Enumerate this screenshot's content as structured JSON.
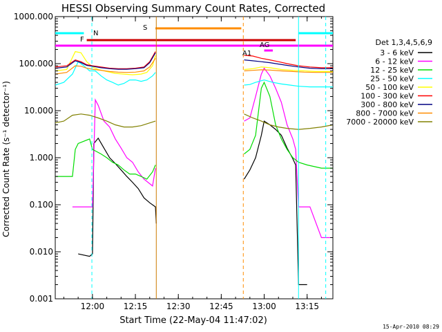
{
  "chart_data": {
    "type": "line",
    "title": "HESSI Observing Summary Count Rates, Corrected",
    "xlabel": "Start Time (22-May-04 11:47:02)",
    "ylabel": "Corrected Count Rate (s⁻¹ detector⁻¹)",
    "y_scale": "log",
    "ylim": [
      0.001,
      1000
    ],
    "xlim": [
      "11:47:02",
      "13:24:30"
    ],
    "x_ticks": [
      "12:00",
      "12:15",
      "12:30",
      "12:45",
      "13:00",
      "13:15"
    ],
    "y_ticks": [
      "0.001",
      "0.010",
      "0.100",
      "1.000",
      "10.000",
      "100.000",
      "1000.000"
    ],
    "legend_title": "Det 1,3,4,5,6,9",
    "legend_position": "right",
    "timestamp": "15-Apr-2010 08:29",
    "annotations": {
      "night_label": "N",
      "saa_label": "S",
      "flare_label": "F",
      "attenuator_label": "A1",
      "decimation_label": "AG"
    },
    "series": [
      {
        "name": "3 - 6 keV",
        "color": "#000000",
        "points": [
          [
            "11:55",
            0.009
          ],
          [
            "11:59",
            0.008
          ],
          [
            "12:00",
            0.009
          ],
          [
            "12:00.5",
            2.0
          ],
          [
            "12:02",
            2.6
          ],
          [
            "12:04",
            1.6
          ],
          [
            "12:06",
            1.0
          ],
          [
            "12:08",
            0.75
          ],
          [
            "12:10",
            0.55
          ],
          [
            "12:12",
            0.4
          ],
          [
            "12:14",
            0.3
          ],
          [
            "12:16",
            0.22
          ],
          [
            "12:18",
            0.14
          ],
          [
            "12:20",
            0.11
          ],
          [
            "12:22",
            0.09
          ],
          [
            "12:22.3",
            0.04
          ],
          [
            "12:53",
            0.35
          ],
          [
            "12:55",
            0.55
          ],
          [
            "12:57",
            1.0
          ],
          [
            "12:59",
            3.0
          ],
          [
            "13:00",
            6.0
          ],
          [
            "13:02",
            5.0
          ],
          [
            "13:04",
            4.0
          ],
          [
            "13:06",
            3.0
          ],
          [
            "13:08",
            1.6
          ],
          [
            "13:10",
            0.95
          ],
          [
            "13:11",
            0.7
          ],
          [
            "13:12",
            0.002
          ],
          [
            "13:15",
            0.002
          ]
        ]
      },
      {
        "name": "6 - 12 keV",
        "color": "#ff00ff",
        "points": [
          [
            "11:53",
            0.09
          ],
          [
            "11:55",
            0.09
          ],
          [
            "11:59",
            0.09
          ],
          [
            "12:00",
            0.09
          ],
          [
            "12:01",
            17
          ],
          [
            "12:02",
            13
          ],
          [
            "12:04",
            6.0
          ],
          [
            "12:06",
            4.5
          ],
          [
            "12:08",
            2.5
          ],
          [
            "12:10",
            1.6
          ],
          [
            "12:12",
            1.0
          ],
          [
            "12:14",
            0.8
          ],
          [
            "12:16",
            0.5
          ],
          [
            "12:18",
            0.35
          ],
          [
            "12:20",
            0.28
          ],
          [
            "12:21",
            0.25
          ],
          [
            "12:22",
            0.6
          ],
          [
            "12:53",
            6.0
          ],
          [
            "12:55",
            7.0
          ],
          [
            "12:57",
            20
          ],
          [
            "12:59",
            60
          ],
          [
            "13:00",
            80
          ],
          [
            "13:02",
            55
          ],
          [
            "13:04",
            30
          ],
          [
            "13:06",
            15
          ],
          [
            "13:08",
            5.0
          ],
          [
            "13:10",
            2.5
          ],
          [
            "13:11",
            1.5
          ],
          [
            "13:12",
            0.09
          ],
          [
            "13:16",
            0.09
          ],
          [
            "13:20",
            0.02
          ],
          [
            "13:23",
            0.02
          ]
        ]
      },
      {
        "name": "12 - 25 keV",
        "color": "#00dd00",
        "points": [
          [
            "11:47",
            0.4
          ],
          [
            "11:53",
            0.4
          ],
          [
            "11:54",
            1.5
          ],
          [
            "11:55",
            2.0
          ],
          [
            "11:59",
            2.5
          ],
          [
            "12:00",
            1.5
          ],
          [
            "12:01",
            1.4
          ],
          [
            "12:03",
            1.2
          ],
          [
            "12:05",
            1.0
          ],
          [
            "12:07",
            0.8
          ],
          [
            "12:09",
            0.7
          ],
          [
            "12:11",
            0.55
          ],
          [
            "12:13",
            0.45
          ],
          [
            "12:15",
            0.45
          ],
          [
            "12:17",
            0.4
          ],
          [
            "12:19",
            0.35
          ],
          [
            "12:21",
            0.5
          ],
          [
            "12:22",
            0.7
          ],
          [
            "12:53",
            1.2
          ],
          [
            "12:55",
            1.5
          ],
          [
            "12:57",
            3.0
          ],
          [
            "12:59",
            30
          ],
          [
            "13:00",
            40
          ],
          [
            "13:02",
            20
          ],
          [
            "13:04",
            5.0
          ],
          [
            "13:06",
            2.5
          ],
          [
            "13:08",
            1.5
          ],
          [
            "13:10",
            1.0
          ],
          [
            "13:12",
            0.8
          ],
          [
            "13:15",
            0.7
          ],
          [
            "13:20",
            0.6
          ],
          [
            "13:24",
            0.6
          ]
        ]
      },
      {
        "name": "25 - 50 keV",
        "color": "#00ffff",
        "points": [
          [
            "11:47",
            35
          ],
          [
            "11:50",
            40
          ],
          [
            "11:53",
            60
          ],
          [
            "11:55",
            110
          ],
          [
            "11:57",
            90
          ],
          [
            "11:59",
            70
          ],
          [
            "12:01",
            70
          ],
          [
            "12:03",
            55
          ],
          [
            "12:05",
            45
          ],
          [
            "12:07",
            40
          ],
          [
            "12:09",
            35
          ],
          [
            "12:11",
            38
          ],
          [
            "12:13",
            45
          ],
          [
            "12:15",
            45
          ],
          [
            "12:17",
            42
          ],
          [
            "12:19",
            45
          ],
          [
            "12:21",
            55
          ],
          [
            "12:22",
            65
          ],
          [
            "12:53",
            35
          ],
          [
            "12:55",
            36
          ],
          [
            "12:57",
            40
          ],
          [
            "13:00",
            45
          ],
          [
            "13:03",
            40
          ],
          [
            "13:06",
            37
          ],
          [
            "13:09",
            35
          ],
          [
            "13:12",
            33
          ],
          [
            "13:16",
            32
          ],
          [
            "13:20",
            32
          ],
          [
            "13:24",
            32
          ]
        ]
      },
      {
        "name": "50 - 100 keV",
        "color": "#ffff00",
        "points": [
          [
            "11:47",
            70
          ],
          [
            "11:51",
            75
          ],
          [
            "11:54",
            180
          ],
          [
            "11:56",
            170
          ],
          [
            "11:58",
            110
          ],
          [
            "12:00",
            85
          ],
          [
            "12:02",
            75
          ],
          [
            "12:05",
            68
          ],
          [
            "12:08",
            62
          ],
          [
            "12:11",
            60
          ],
          [
            "12:14",
            58
          ],
          [
            "12:17",
            60
          ],
          [
            "12:19",
            65
          ],
          [
            "12:21",
            90
          ],
          [
            "12:22",
            150
          ],
          [
            "12:53",
            75
          ],
          [
            "12:56",
            78
          ],
          [
            "12:59",
            85
          ],
          [
            "13:02",
            82
          ],
          [
            "13:06",
            75
          ],
          [
            "13:10",
            72
          ],
          [
            "13:14",
            70
          ],
          [
            "13:18",
            68
          ],
          [
            "13:24",
            68
          ]
        ]
      },
      {
        "name": "100 - 300 keV",
        "color": "#ff0000",
        "points": [
          [
            "11:47",
            85
          ],
          [
            "11:51",
            90
          ],
          [
            "11:54",
            120
          ],
          [
            "11:56",
            110
          ],
          [
            "11:58",
            95
          ],
          [
            "12:00",
            90
          ],
          [
            "12:03",
            85
          ],
          [
            "12:06",
            80
          ],
          [
            "12:09",
            78
          ],
          [
            "12:12",
            78
          ],
          [
            "12:15",
            80
          ],
          [
            "12:18",
            85
          ],
          [
            "12:20",
            110
          ],
          [
            "12:22",
            180
          ],
          [
            "12:53",
            150
          ],
          [
            "12:56",
            145
          ],
          [
            "12:59",
            130
          ],
          [
            "13:02",
            120
          ],
          [
            "13:05",
            110
          ],
          [
            "13:08",
            100
          ],
          [
            "13:12",
            90
          ],
          [
            "13:16",
            85
          ],
          [
            "13:20",
            82
          ],
          [
            "13:24",
            82
          ]
        ]
      },
      {
        "name": "300 - 800 keV",
        "color": "#000080",
        "points": [
          [
            "11:47",
            80
          ],
          [
            "11:51",
            85
          ],
          [
            "11:54",
            115
          ],
          [
            "11:56",
            105
          ],
          [
            "11:58",
            92
          ],
          [
            "12:00",
            88
          ],
          [
            "12:03",
            82
          ],
          [
            "12:06",
            78
          ],
          [
            "12:09",
            76
          ],
          [
            "12:12",
            76
          ],
          [
            "12:15",
            78
          ],
          [
            "12:18",
            82
          ],
          [
            "12:20",
            105
          ],
          [
            "12:22",
            170
          ],
          [
            "12:53",
            120
          ],
          [
            "12:56",
            115
          ],
          [
            "12:59",
            110
          ],
          [
            "13:02",
            105
          ],
          [
            "13:05",
            98
          ],
          [
            "13:08",
            92
          ],
          [
            "13:12",
            85
          ],
          [
            "13:16",
            80
          ],
          [
            "13:20",
            78
          ],
          [
            "13:24",
            78
          ]
        ]
      },
      {
        "name": "800 - 7000 keV",
        "color": "#ff8c00",
        "points": [
          [
            "11:47",
            60
          ],
          [
            "11:51",
            65
          ],
          [
            "11:54",
            90
          ],
          [
            "11:56",
            88
          ],
          [
            "11:58",
            80
          ],
          [
            "12:00",
            76
          ],
          [
            "12:03",
            72
          ],
          [
            "12:06",
            68
          ],
          [
            "12:09",
            66
          ],
          [
            "12:12",
            65
          ],
          [
            "12:15",
            66
          ],
          [
            "12:18",
            70
          ],
          [
            "12:20",
            85
          ],
          [
            "12:22",
            130
          ],
          [
            "12:53",
            70
          ],
          [
            "12:56",
            72
          ],
          [
            "12:59",
            74
          ],
          [
            "13:02",
            73
          ],
          [
            "13:06",
            70
          ],
          [
            "13:10",
            68
          ],
          [
            "13:14",
            66
          ],
          [
            "13:18",
            65
          ],
          [
            "13:24",
            65
          ]
        ]
      },
      {
        "name": "7000 - 20000 keV",
        "color": "#808000",
        "points": [
          [
            "11:47",
            5.5
          ],
          [
            "11:50",
            6.0
          ],
          [
            "11:53",
            8.0
          ],
          [
            "11:56",
            8.5
          ],
          [
            "11:59",
            8.0
          ],
          [
            "12:02",
            7.0
          ],
          [
            "12:05",
            6.0
          ],
          [
            "12:08",
            5.0
          ],
          [
            "12:11",
            4.5
          ],
          [
            "12:14",
            4.5
          ],
          [
            "12:17",
            4.8
          ],
          [
            "12:20",
            5.5
          ],
          [
            "12:22",
            6.0
          ],
          [
            "12:53",
            8.5
          ],
          [
            "12:56",
            7.0
          ],
          [
            "12:59",
            6.0
          ],
          [
            "13:02",
            5.0
          ],
          [
            "13:05",
            4.5
          ],
          [
            "13:08",
            4.2
          ],
          [
            "13:12",
            4.0
          ],
          [
            "13:16",
            4.2
          ],
          [
            "13:20",
            4.5
          ],
          [
            "13:24",
            5.0
          ]
        ]
      }
    ],
    "state_bars": [
      {
        "label": "night",
        "color": "#00ffff",
        "start": "11:47",
        "end": "11:57"
      },
      {
        "label": "night",
        "color": "#00ffff",
        "start": "13:12",
        "end": "13:24"
      },
      {
        "label": "saa",
        "color": "#ff8c00",
        "start": "12:22",
        "end": "12:52"
      },
      {
        "label": "flare",
        "color": "#cc0000",
        "start": "11:58",
        "end": "13:11"
      },
      {
        "label": "decimation",
        "color": "#ff00ff",
        "start": "11:47",
        "end": "13:24"
      },
      {
        "label": "attenuator",
        "color": "#ff00ff",
        "start": "13:00",
        "end": "13:03"
      }
    ],
    "vertical_lines": [
      {
        "time": "11:59.8",
        "color": "#00ffff",
        "style": "dashed"
      },
      {
        "time": "12:22.3",
        "color": "#cc7a00",
        "style": "solid"
      },
      {
        "time": "12:52.7",
        "color": "#ff8c00",
        "style": "dashed"
      },
      {
        "time": "13:12",
        "color": "#00ffff",
        "style": "solid"
      },
      {
        "time": "13:21.5",
        "color": "#00ffff",
        "style": "dashed"
      }
    ]
  }
}
